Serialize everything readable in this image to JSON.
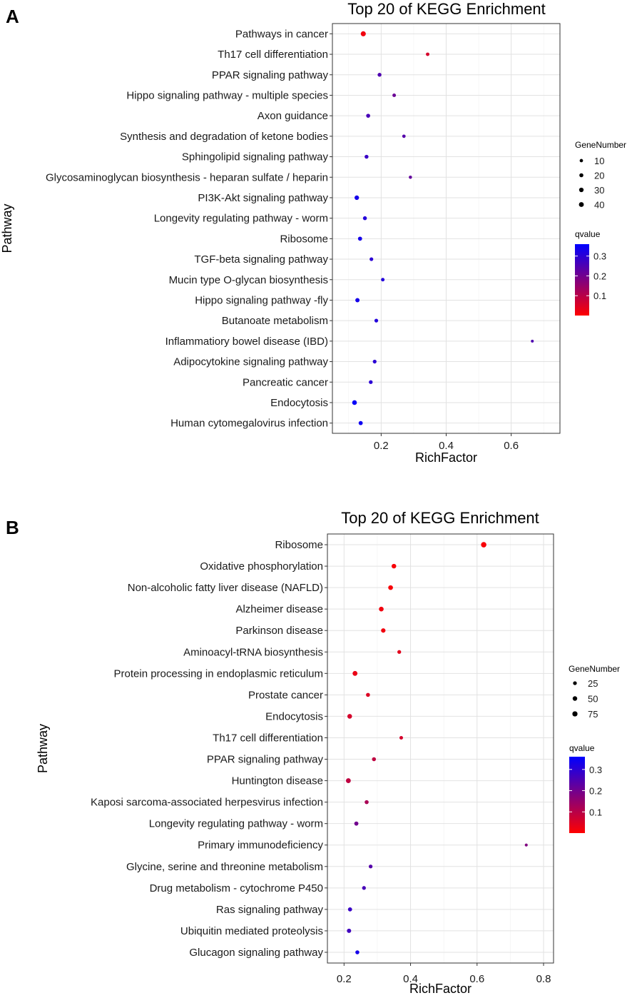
{
  "chart_data": [
    {
      "panel": "A",
      "type": "scatter",
      "title": "Top 20 of KEGG Enrichment",
      "xlabel": "RichFactor",
      "ylabel": "Pathway",
      "xlim": [
        0.05,
        0.75
      ],
      "xticks": [
        0.2,
        0.4,
        0.6
      ],
      "xtick_labels": [
        "0.2",
        "0.4",
        "0.6"
      ],
      "size_legend": {
        "title": "GeneNumber",
        "values": [
          10,
          20,
          30,
          40
        ],
        "labels": [
          "10",
          "20",
          "30",
          "40"
        ]
      },
      "color_legend": {
        "title": "qvalue",
        "min": 0.0,
        "max": 0.36,
        "ticks": [
          0.1,
          0.2,
          0.3
        ],
        "tick_labels": [
          "0.1",
          "0.2",
          "0.3"
        ],
        "low_color": "#ff0000",
        "high_color": "#0000ff"
      },
      "pathways": [
        "Pathways in cancer",
        "Th17 cell differentiation",
        "PPAR signaling pathway",
        "Hippo signaling pathway - multiple species",
        "Axon guidance",
        "Synthesis and degradation of ketone bodies",
        "Sphingolipid signaling pathway",
        "Glycosaminoglycan biosynthesis - heparan sulfate / heparin",
        "PI3K-Akt signaling pathway",
        "Longevity regulating pathway - worm",
        "Ribosome",
        "TGF-beta signaling pathway",
        "Mucin type O-glycan biosynthesis",
        "Hippo signaling pathway -fly",
        "Butanoate metabolism",
        "Inflammatiory bowel disease (IBD)",
        "Adipocytokine signaling pathway",
        "Pancreatic cancer",
        "Endocytosis",
        "Human cytomegalovirus infection"
      ],
      "richfactor": [
        0.145,
        0.343,
        0.195,
        0.24,
        0.16,
        0.27,
        0.155,
        0.29,
        0.125,
        0.15,
        0.135,
        0.17,
        0.205,
        0.127,
        0.185,
        0.665,
        0.18,
        0.168,
        0.118,
        0.137
      ],
      "gene_number": [
        45,
        12,
        18,
        12,
        20,
        10,
        18,
        8,
        30,
        18,
        22,
        15,
        12,
        25,
        15,
        4,
        16,
        16,
        35,
        22
      ],
      "qvalue": [
        0.02,
        0.06,
        0.25,
        0.21,
        0.26,
        0.24,
        0.28,
        0.22,
        0.33,
        0.31,
        0.33,
        0.3,
        0.31,
        0.33,
        0.31,
        0.25,
        0.3,
        0.3,
        0.35,
        0.34
      ]
    },
    {
      "panel": "B",
      "type": "scatter",
      "title": "Top 20 of KEGG Enrichment",
      "xlabel": "RichFactor",
      "ylabel": "Pathway",
      "xlim": [
        0.15,
        0.83
      ],
      "xticks": [
        0.2,
        0.4,
        0.6,
        0.8
      ],
      "xtick_labels": [
        "0.2",
        "0.4",
        "0.6",
        "0.8"
      ],
      "size_legend": {
        "title": "GeneNumber",
        "values": [
          25,
          50,
          75
        ],
        "labels": [
          "25",
          "50",
          "75"
        ]
      },
      "color_legend": {
        "title": "qvalue",
        "min": 0.0,
        "max": 0.36,
        "ticks": [
          0.1,
          0.2,
          0.3
        ],
        "tick_labels": [
          "0.1",
          "0.2",
          "0.3"
        ],
        "low_color": "#ff0000",
        "high_color": "#0000ff"
      },
      "pathways": [
        "Ribosome",
        "Oxidative phosphorylation",
        "Non-alcoholic fatty liver disease (NAFLD)",
        "Alzheimer disease",
        "Parkinson disease",
        "Aminoacyl-tRNA biosynthesis",
        "Protein processing in endoplasmic reticulum",
        "Prostate cancer",
        "Endocytosis",
        "Th17 cell differentiation",
        "PPAR signaling pathway",
        "Huntington disease",
        "Kaposi sarcoma-associated herpesvirus infection",
        "Longevity regulating pathway - worm",
        "Primary immunodeficiency",
        "Glycine, serine and threonine metabolism",
        "Drug metabolism - cytochrome P450",
        "Ras signaling pathway",
        "Ubiquitin mediated proteolysis",
        "Glucagon signaling pathway"
      ],
      "richfactor": [
        0.62,
        0.35,
        0.34,
        0.312,
        0.318,
        0.366,
        0.233,
        0.272,
        0.217,
        0.372,
        0.29,
        0.213,
        0.268,
        0.237,
        0.748,
        0.28,
        0.26,
        0.218,
        0.215,
        0.24
      ],
      "gene_number": [
        85,
        50,
        55,
        55,
        45,
        25,
        60,
        30,
        55,
        20,
        30,
        60,
        30,
        35,
        8,
        25,
        25,
        35,
        40,
        30
      ],
      "qvalue": [
        0.01,
        0.01,
        0.01,
        0.02,
        0.02,
        0.04,
        0.03,
        0.05,
        0.06,
        0.06,
        0.09,
        0.09,
        0.12,
        0.2,
        0.18,
        0.24,
        0.26,
        0.28,
        0.27,
        0.33
      ]
    }
  ]
}
